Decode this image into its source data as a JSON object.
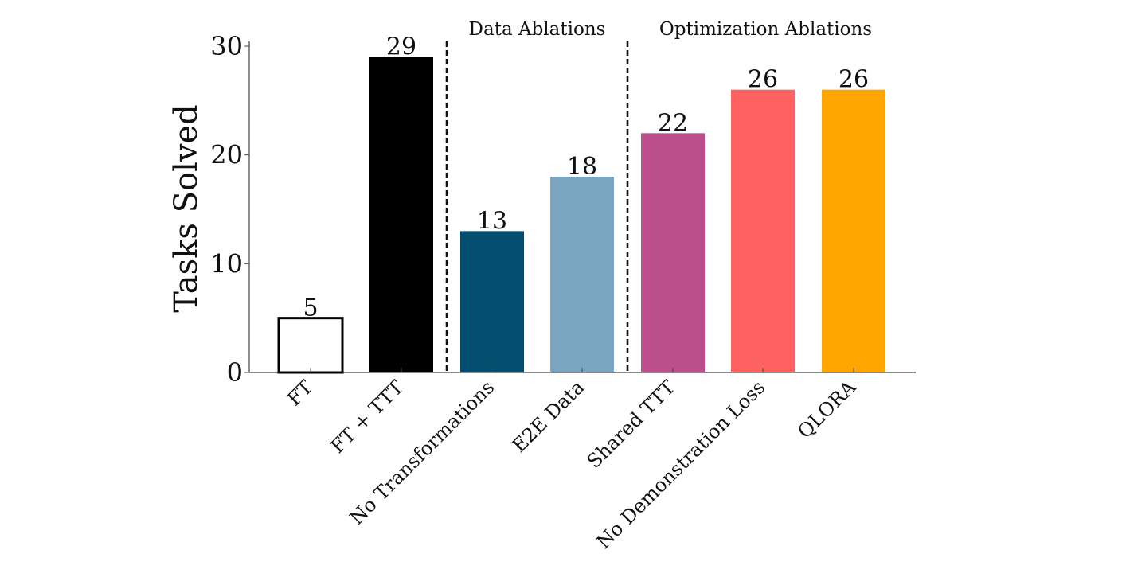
{
  "chart_data": {
    "type": "bar",
    "title": "",
    "xlabel": "",
    "ylabel": "Tasks Solved",
    "ylim": [
      0,
      30
    ],
    "yticks": [
      0,
      10,
      20,
      30
    ],
    "grid": false,
    "categories": [
      "FT",
      "FT + TTT",
      "No Transformations",
      "E2E Data",
      "Shared TTT",
      "No Demonstration Loss",
      "QLORA"
    ],
    "values": [
      5,
      29,
      13,
      18,
      22,
      26,
      26
    ],
    "colors": [
      "#ffffff",
      "#000000",
      "#034e6e",
      "#7ba6c2",
      "#bb4f8e",
      "#ff6361",
      "#ffa600"
    ],
    "outlined": [
      true,
      false,
      false,
      false,
      false,
      false,
      false
    ],
    "data_labels": [
      "5",
      "29",
      "13",
      "18",
      "22",
      "26",
      "26"
    ],
    "separators": [
      {
        "after_category": "FT + TTT",
        "style": "dashed"
      },
      {
        "after_category": "E2E Data",
        "style": "dashed"
      }
    ],
    "group_annotations": [
      {
        "text": "Data Ablations",
        "categories": [
          "No Transformations",
          "E2E Data"
        ]
      },
      {
        "text": "Optimization Ablations",
        "categories": [
          "Shared TTT",
          "No Demonstration Loss",
          "QLORA"
        ]
      }
    ],
    "xtick_rotation_deg": 45
  }
}
